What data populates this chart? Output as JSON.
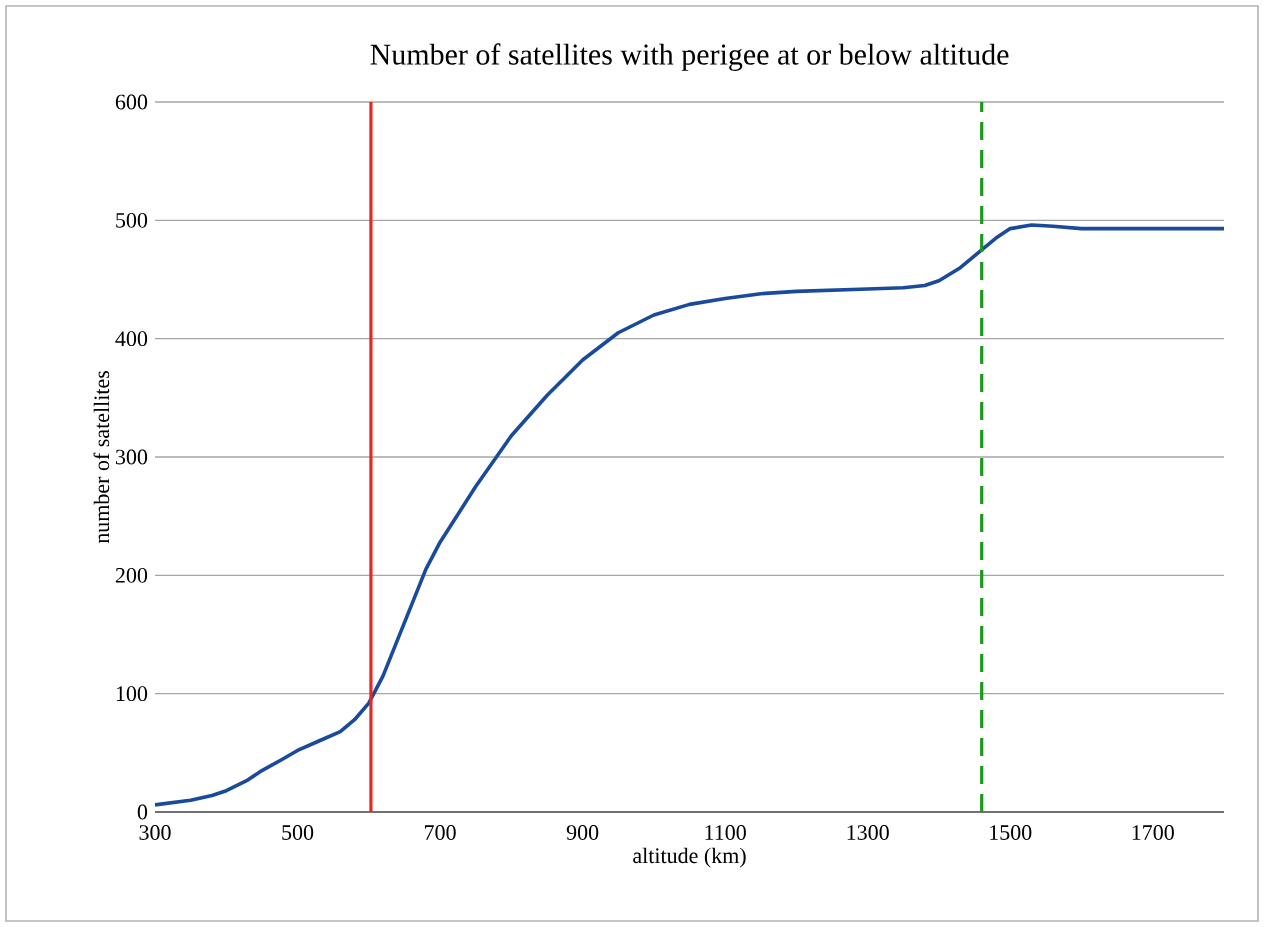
{
  "chart_data": {
    "type": "line",
    "title": "Number of satellites with perigee at or below altitude",
    "xlabel": "altitude (km)",
    "ylabel": "number of satellites",
    "x": [
      300,
      350,
      380,
      400,
      430,
      450,
      480,
      500,
      530,
      560,
      580,
      600,
      620,
      650,
      680,
      700,
      750,
      800,
      850,
      900,
      950,
      1000,
      1050,
      1100,
      1150,
      1200,
      1250,
      1300,
      1350,
      1380,
      1400,
      1430,
      1460,
      1480,
      1500,
      1530,
      1560,
      1600,
      1700,
      1800
    ],
    "series": [
      {
        "color": "#1a4a9c",
        "values": [
          6,
          10,
          14,
          18,
          27,
          35,
          45,
          52,
          60,
          68,
          78,
          92,
          115,
          160,
          205,
          228,
          275,
          318,
          352,
          382,
          405,
          420,
          429,
          434,
          438,
          440,
          441,
          442,
          443,
          445,
          449,
          460,
          475,
          485,
          493,
          496,
          495,
          493,
          493,
          493
        ]
      }
    ],
    "xlim": [
      300,
      1800
    ],
    "xticks": [
      300,
      500,
      700,
      900,
      1100,
      1300,
      1500,
      1700
    ],
    "ylim": [
      0,
      600
    ],
    "yticks": [
      0,
      100,
      200,
      300,
      400,
      500,
      600
    ],
    "grid": "y",
    "marker": "none",
    "line_style": "solid",
    "ref_lines": [
      {
        "axis": "x",
        "value": 603,
        "color": "#e8281e",
        "line_style": "solid"
      },
      {
        "axis": "x",
        "value": 1460,
        "color": "#1a9a1a",
        "line_style": "dashed"
      }
    ]
  }
}
